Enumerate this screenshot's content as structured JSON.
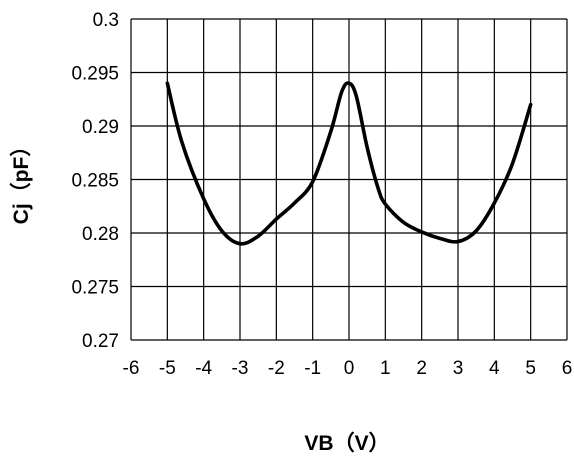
{
  "chart_data": {
    "type": "line",
    "xlabel": "VB（V）",
    "ylabel": "Cj（pF）",
    "xlim": [
      -6,
      6
    ],
    "ylim": [
      0.27,
      0.3
    ],
    "x_ticks": [
      "-6",
      "-5",
      "-4",
      "-3",
      "-2",
      "-1",
      "0",
      "1",
      "2",
      "3",
      "4",
      "5",
      "6"
    ],
    "y_ticks": [
      "0.27",
      "0.275",
      "0.28",
      "0.285",
      "0.29",
      "0.295",
      "0.3"
    ],
    "grid": true,
    "series": [
      {
        "x": [
          -5,
          -4.6,
          -4,
          -3.5,
          -3,
          -2.5,
          -2,
          -1.5,
          -1,
          -0.5,
          -0.2,
          0,
          0.2,
          0.5,
          0.8,
          1,
          1.5,
          2,
          2.5,
          3,
          3.5,
          4,
          4.5,
          5
        ],
        "y": [
          0.294,
          0.2885,
          0.2832,
          0.2802,
          0.279,
          0.2797,
          0.2813,
          0.2828,
          0.2848,
          0.2895,
          0.2932,
          0.294,
          0.2928,
          0.288,
          0.2842,
          0.2827,
          0.281,
          0.2801,
          0.2795,
          0.2792,
          0.2802,
          0.2828,
          0.2865,
          0.292
        ]
      }
    ]
  }
}
